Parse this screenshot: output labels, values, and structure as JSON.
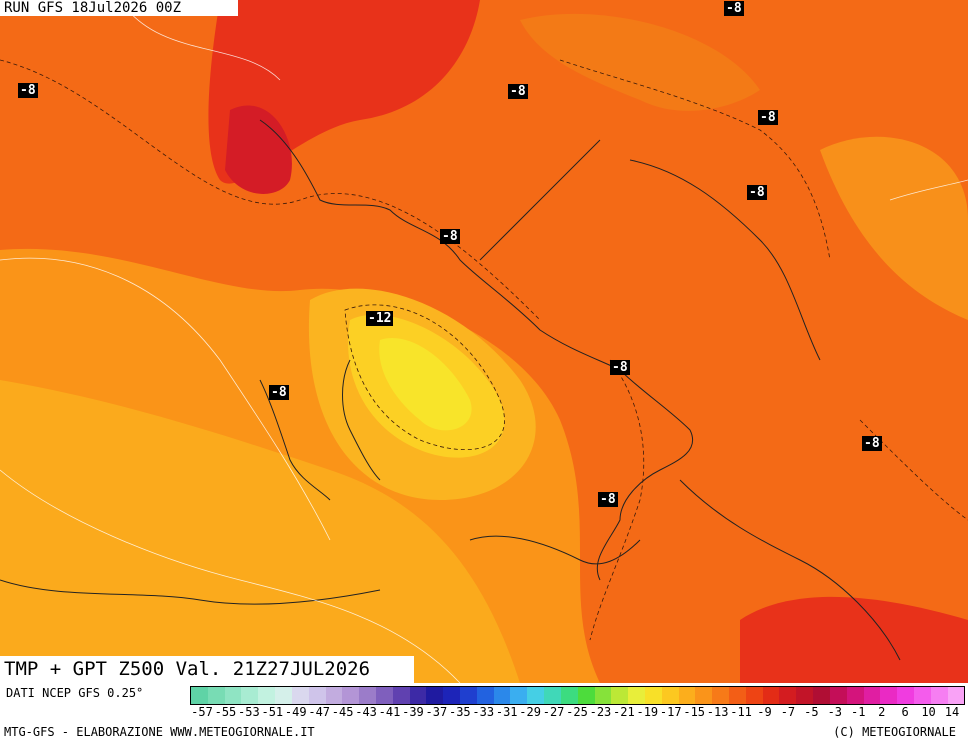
{
  "header": {
    "run_label": "RUN GFS 18Jul2026 00Z"
  },
  "title": {
    "text": "TMP + GPT Z500 Val. 21Z27JUL2026"
  },
  "isolines": [
    {
      "text": "-8"
    },
    {
      "text": "-8"
    },
    {
      "text": "-8"
    },
    {
      "text": "-8"
    },
    {
      "text": "-8"
    },
    {
      "text": "-8"
    },
    {
      "text": "-12"
    },
    {
      "text": "-8"
    },
    {
      "text": "-8"
    },
    {
      "text": "-8"
    },
    {
      "text": "-8"
    }
  ],
  "footer": {
    "dati": "DATI NCEP GFS 0.25°",
    "credit_left": "MTG-GFS - ELABORAZIONE WWW.METEOGIORNALE.IT",
    "credit_right": "(C) METEOGIORNALE",
    "scale_ticks": [
      "-57",
      "-55",
      "-53",
      "-51",
      "-49",
      "-47",
      "-45",
      "-43",
      "-41",
      "-39",
      "-37",
      "-35",
      "-33",
      "-31",
      "-29",
      "-27",
      "-25",
      "-23",
      "-21",
      "-19",
      "-17",
      "-15",
      "-13",
      "-11",
      "-9",
      "-7",
      "-5",
      "-3",
      "-1",
      "2",
      "6",
      "10",
      "14"
    ],
    "scale_colors": [
      "#5fd3a6",
      "#78dcb4",
      "#8fe4c3",
      "#a8ecd2",
      "#c2f2e0",
      "#d5f0ea",
      "#dad8ee",
      "#cfc4ea",
      "#c2acdf",
      "#b395d6",
      "#9b7cc9",
      "#7f5fbd",
      "#6041b0",
      "#3d2aa6",
      "#1f1aa0",
      "#1d24b8",
      "#1f3fcf",
      "#2262e0",
      "#2b88ea",
      "#3aaef0",
      "#45cfe5",
      "#40d8b8",
      "#3cdc80",
      "#4ddc3c",
      "#86e23a",
      "#bce836",
      "#e8ee3a",
      "#f8e028",
      "#fcc820",
      "#fcae1c",
      "#fa941a",
      "#f77a18",
      "#f35e16",
      "#ee4414",
      "#e32c16",
      "#d41c20",
      "#c21428",
      "#b00e34",
      "#c40e58",
      "#d4147c",
      "#e01ea2",
      "#ea2ac4",
      "#f03ce0",
      "#f45cec",
      "#f67ef2",
      "#f9a2f6"
    ]
  }
}
